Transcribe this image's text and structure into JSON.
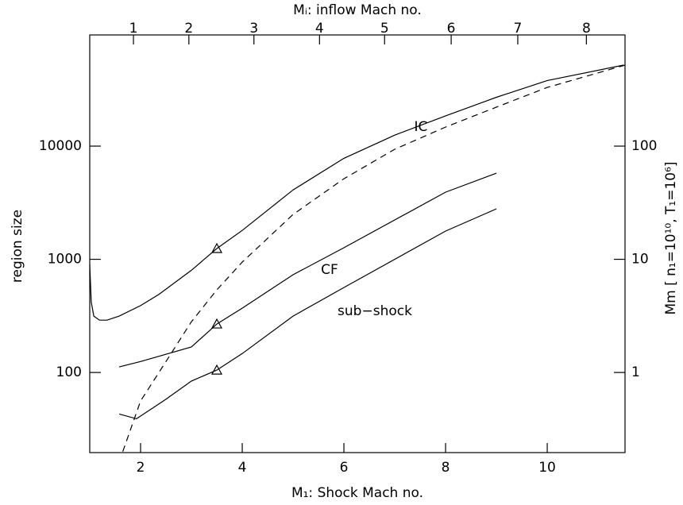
{
  "chart_data": {
    "type": "line",
    "xlabel": "M₁: Shock Mach no.",
    "x2label": "Mᵢ: inflow Mach no.",
    "ylabel": "region size",
    "y2label": "Mm [ n₁=10¹⁰, T₁=10⁶]",
    "xlim": [
      1,
      11.53
    ],
    "xticks": [
      2,
      4,
      6,
      8,
      10
    ],
    "x2ticks": [
      1,
      2,
      3,
      4,
      5,
      6,
      7,
      8
    ],
    "x2ticks_at_x": [
      1.86,
      2.95,
      4.23,
      5.52,
      6.8,
      8.11,
      9.42,
      10.77
    ],
    "ylim": [
      19.6,
      96000
    ],
    "yticks": [
      100,
      1000,
      10000
    ],
    "ylog": true,
    "y2lim": [
      0.196,
      960
    ],
    "y2ticks": [
      1,
      10,
      100
    ],
    "series": [
      {
        "name": "IC",
        "color": "#000000",
        "dashed": false,
        "x": [
          1.0,
          1.03,
          1.08,
          1.19,
          1.34,
          1.58,
          2.0,
          2.36,
          3.0,
          3.5,
          4.0,
          5.0,
          6.0,
          7.0,
          8.0,
          9.0,
          10.0,
          11.5
        ],
        "values": [
          900,
          420,
          315,
          290,
          290,
          315,
          390,
          490,
          800,
          1245,
          1800,
          4100,
          7800,
          12500,
          18500,
          27000,
          38000,
          52000
        ]
      },
      {
        "name": "CF",
        "color": "#000000",
        "dashed": false,
        "x": [
          1.58,
          2.0,
          3.0,
          3.5,
          4.0,
          5.0,
          6.0,
          8.0,
          9.0
        ],
        "values": [
          112,
          125,
          168,
          268,
          370,
          730,
          1265,
          3920,
          5770
        ]
      },
      {
        "name": "sub−shock",
        "color": "#000000",
        "dashed": false,
        "x": [
          1.58,
          1.92,
          2.5,
          3.0,
          3.5,
          4.0,
          5.0,
          6.0,
          8.0,
          9.0
        ],
        "values": [
          43,
          39,
          58,
          84,
          105,
          147,
          315,
          563,
          1775,
          2790
        ]
      },
      {
        "color": "#000000",
        "dashed": true,
        "x": [
          1.65,
          2.0,
          2.5,
          3.0,
          3.5,
          4.0,
          5.0,
          6.0,
          7.0,
          8.0,
          9.0,
          10.0,
          11.53
        ],
        "values": [
          20,
          56,
          125,
          281,
          537,
          945,
          2490,
          5150,
          9380,
          14730,
          22100,
          33000,
          52000
        ]
      }
    ],
    "markers": {
      "x": [
        3.5,
        3.5,
        3.5
      ],
      "values": [
        1245,
        268,
        105
      ]
    }
  }
}
